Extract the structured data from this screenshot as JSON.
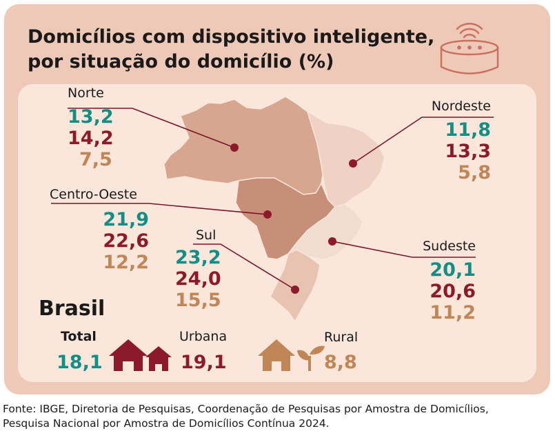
{
  "title_lines": [
    "Domicílios com dispositivo inteligente,",
    "por situação do domicílio (%)"
  ],
  "colors": {
    "total": "#138e85",
    "urbana": "#8d1a2c",
    "rural": "#c18656",
    "card": "#efc9b7",
    "panel": "#fbe6dc"
  },
  "icons": {
    "header": "smart-speaker-icon",
    "urbana": "houses-icon",
    "rural": "house-plant-icon"
  },
  "chart_data": {
    "type": "table",
    "measure": "%",
    "series": [
      "Total",
      "Urbana",
      "Rural"
    ],
    "regions": [
      {
        "name": "Norte",
        "total": "13,2",
        "urbana": "14,2",
        "rural": "7,5"
      },
      {
        "name": "Nordeste",
        "total": "11,8",
        "urbana": "13,3",
        "rural": "5,8"
      },
      {
        "name": "Centro-Oeste",
        "total": "21,9",
        "urbana": "22,6",
        "rural": "12,2"
      },
      {
        "name": "Sul",
        "total": "23,2",
        "urbana": "24,0",
        "rural": "15,5"
      },
      {
        "name": "Sudeste",
        "total": "20,1",
        "urbana": "20,6",
        "rural": "11,2"
      }
    ],
    "brasil": {
      "label": "Brasil",
      "total_label": "Total",
      "total": "18,1",
      "urbana_label": "Urbana",
      "urbana": "19,1",
      "rural_label": "Rural",
      "rural": "8,8"
    }
  },
  "source_lines": [
    "Fonte: IBGE, Diretoria de Pesquisas, Coordenação de Pesquisas por Amostra de Domicílios,",
    "Pesquisa Nacional por Amostra de Domicílios Contínua 2024."
  ]
}
